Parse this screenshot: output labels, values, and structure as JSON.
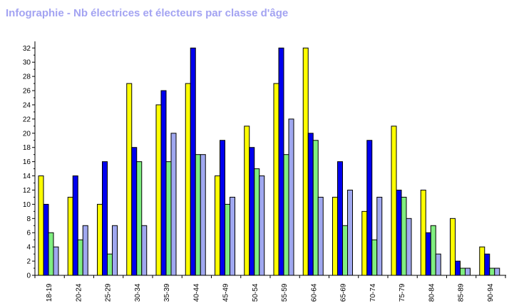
{
  "chart_data": {
    "type": "bar",
    "title": "Infographie - Nb électrices et électeurs par classe d'âge",
    "xlabel": "",
    "ylabel": "",
    "ylim": [
      0,
      33
    ],
    "yticks": [
      0,
      2,
      4,
      6,
      8,
      10,
      12,
      14,
      16,
      18,
      20,
      22,
      24,
      26,
      28,
      30,
      32
    ],
    "grid": false,
    "legend": "none",
    "categories": [
      "18-19",
      "20-24",
      "25-29",
      "30-34",
      "35-39",
      "40-44",
      "45-49",
      "50-54",
      "55-59",
      "60-64",
      "65-69",
      "70-74",
      "75-79",
      "80-84",
      "85-89",
      "90-94"
    ],
    "series": [
      {
        "color": "#ffff00",
        "values": [
          14,
          11,
          10,
          27,
          24,
          27,
          14,
          21,
          27,
          32,
          11,
          9,
          21,
          12,
          8,
          4
        ]
      },
      {
        "color": "#0000ee",
        "values": [
          10,
          14,
          16,
          18,
          26,
          32,
          19,
          18,
          32,
          20,
          16,
          19,
          12,
          6,
          2,
          3
        ]
      },
      {
        "color": "#80ee80",
        "values": [
          6,
          5,
          3,
          16,
          16,
          17,
          10,
          15,
          17,
          19,
          7,
          5,
          11,
          7,
          1,
          1
        ]
      },
      {
        "color": "#a0a8f0",
        "values": [
          4,
          7,
          7,
          7,
          20,
          17,
          11,
          14,
          22,
          11,
          12,
          11,
          8,
          3,
          1,
          1
        ]
      }
    ]
  }
}
